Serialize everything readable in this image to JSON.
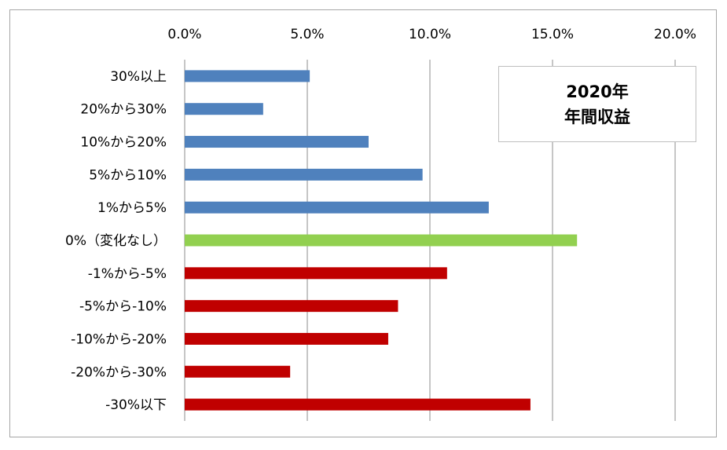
{
  "chart_data": {
    "type": "bar",
    "orientation": "horizontal",
    "title_lines": [
      "2020年",
      "年間収益"
    ],
    "categories": [
      "30%以上",
      "20%から30%",
      "10%から20%",
      "5%から10%",
      "1%から5%",
      "0%（変化なし）",
      "-1%から-5%",
      "-5%から-10%",
      "-10%から-20%",
      "-20%から-30%",
      "-30%以下"
    ],
    "values": [
      5.1,
      3.2,
      7.5,
      9.7,
      12.4,
      16.0,
      10.7,
      8.7,
      8.3,
      4.3,
      14.1
    ],
    "bar_colors": [
      "#4f81bd",
      "#4f81bd",
      "#4f81bd",
      "#4f81bd",
      "#4f81bd",
      "#92d050",
      "#c00000",
      "#c00000",
      "#c00000",
      "#c00000",
      "#c00000"
    ],
    "x_ticks": [
      "0.0%",
      "5.0%",
      "10.0%",
      "15.0%",
      "20.0%"
    ],
    "xlim": [
      0,
      20
    ],
    "x_axis_position": "top",
    "grid": true,
    "xlabel": "",
    "ylabel": ""
  }
}
